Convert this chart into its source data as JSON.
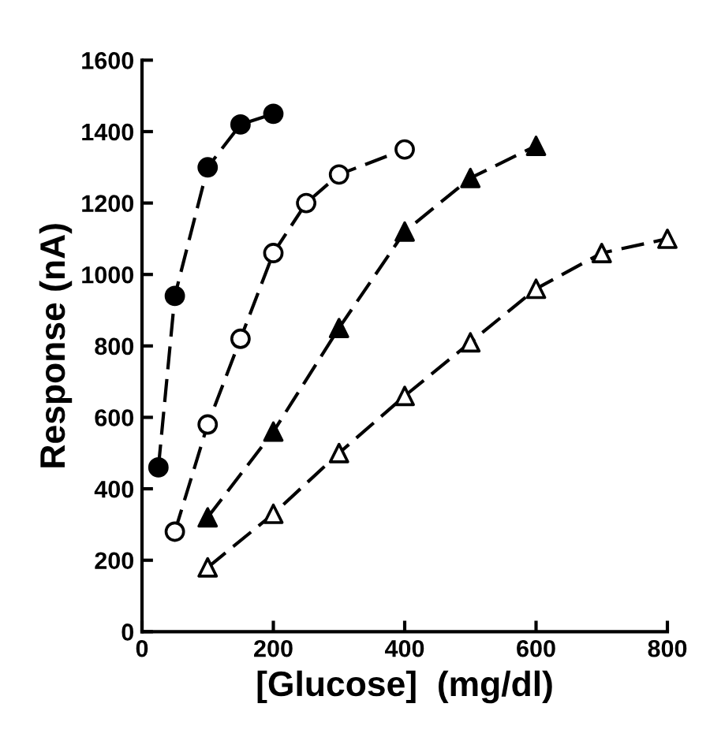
{
  "chart_data": {
    "type": "line",
    "xlabel": "[Glucose]  (mg/dl)",
    "ylabel": "Response (nA)",
    "xlim": [
      0,
      800
    ],
    "ylim": [
      0,
      1600
    ],
    "xticks": [
      0,
      200,
      400,
      600,
      800
    ],
    "yticks": [
      0,
      200,
      400,
      600,
      800,
      1000,
      1200,
      1400,
      1600
    ],
    "grid": false,
    "line_style": "dashed",
    "series": [
      {
        "color": "#000000",
        "marker": "circle",
        "x": [
          25,
          50,
          100,
          150,
          200
        ],
        "values": [
          460,
          940,
          1300,
          1420,
          1450
        ]
      },
      {
        "color": "#000000",
        "marker": "circle",
        "colors": [
          "#ffffff",
          "#ffffff",
          "#ffffff",
          "#ffffff",
          "#ffffff",
          "#ffffff",
          "#ffffff"
        ],
        "x": [
          50,
          100,
          150,
          200,
          250,
          300,
          400
        ],
        "values": [
          280,
          580,
          820,
          1060,
          1200,
          1280,
          1350
        ]
      },
      {
        "color": "#000000",
        "marker": "triangle",
        "x": [
          100,
          200,
          300,
          400,
          500,
          600
        ],
        "values": [
          320,
          560,
          850,
          1120,
          1270,
          1360
        ]
      },
      {
        "color": "#000000",
        "marker": "triangle",
        "colors": [
          "#ffffff",
          "#ffffff",
          "#ffffff",
          "#ffffff",
          "#ffffff",
          "#ffffff",
          "#ffffff",
          "#ffffff"
        ],
        "x": [
          100,
          200,
          300,
          400,
          500,
          600,
          700,
          800
        ],
        "values": [
          180,
          330,
          500,
          660,
          810,
          960,
          1060,
          1100
        ]
      }
    ]
  }
}
